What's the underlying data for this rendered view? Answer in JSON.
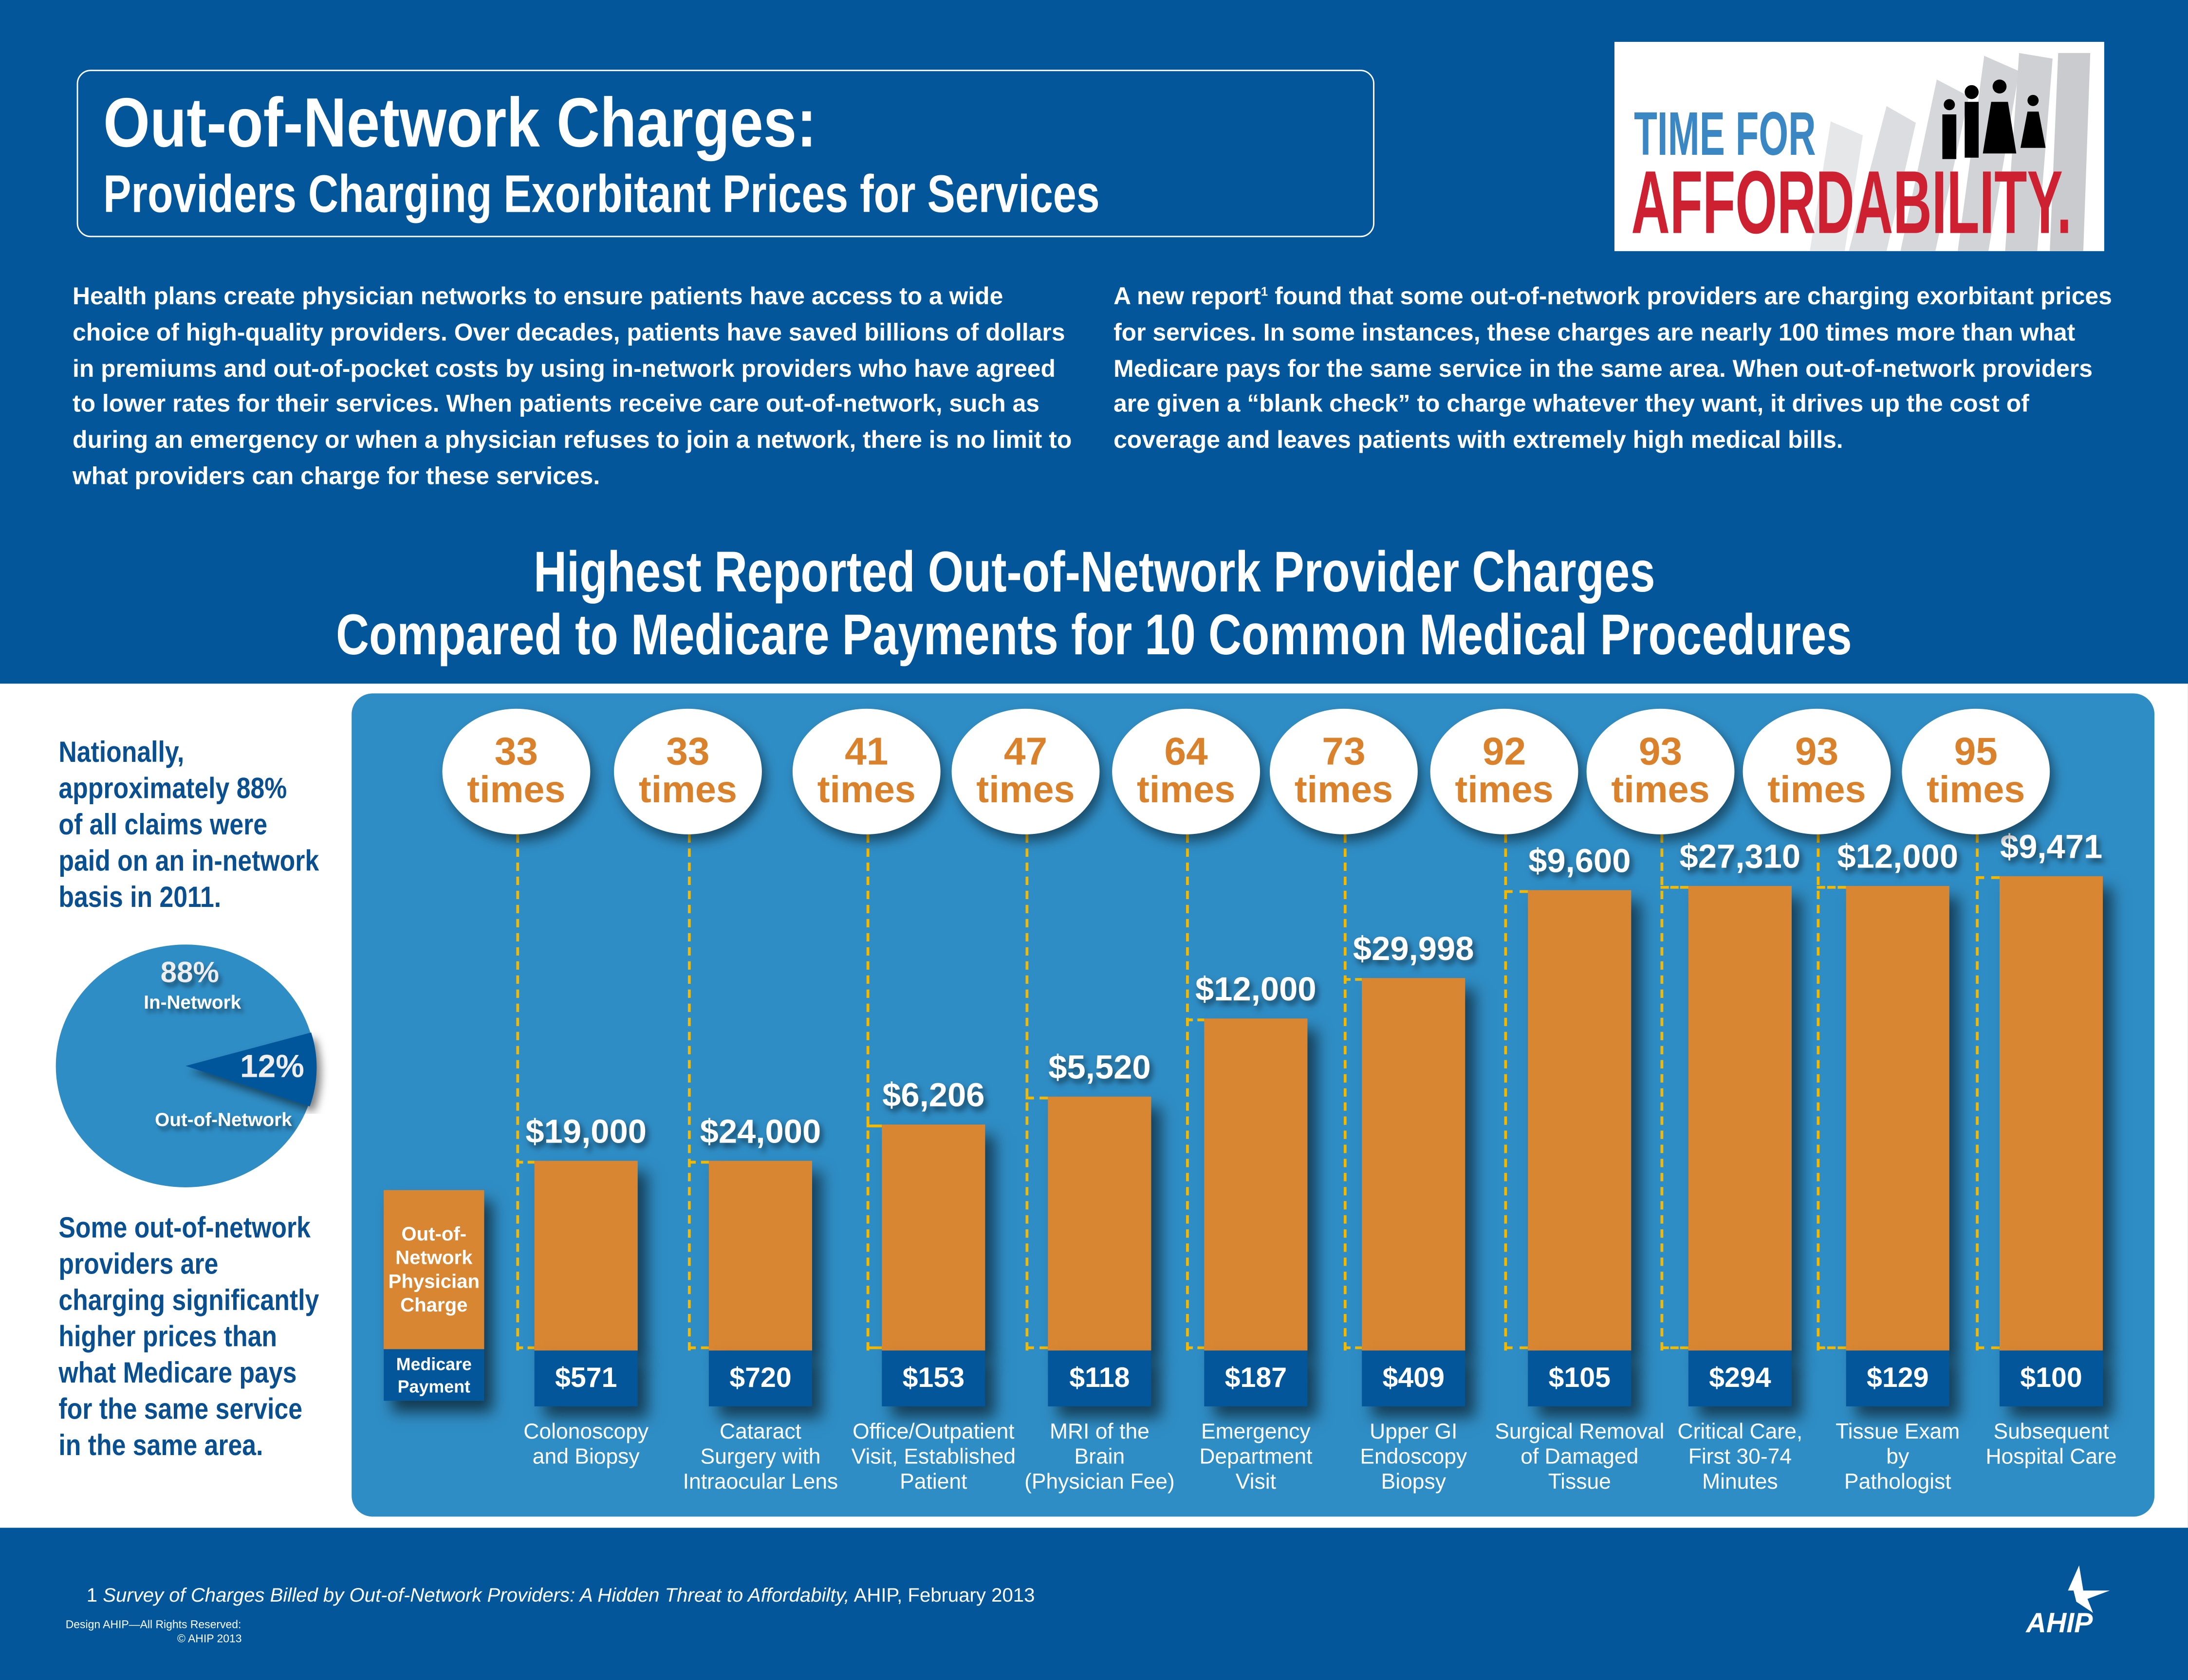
{
  "header": {
    "title_line1": "Out-of-Network Charges:",
    "title_line2": "Providers Charging Exorbitant Prices for Services"
  },
  "logo": {
    "line1": "TIME FOR",
    "line2": "AFFORDABILITY."
  },
  "intro": {
    "left": "Health plans create physician networks to ensure patients have access to a wide choice of high-quality providers. Over decades, patients have saved billions of dollars in premiums and out-of-pocket costs by using in-network providers who have agreed to lower rates for their services. When patients receive care out-of-network, such as during an emergency or when a physician refuses to join a network, there is no limit to what providers can charge for these services.",
    "right_before": "A new report",
    "right_sup": "1",
    "right_after": " found that some out-of-network providers are charging exorbitant prices for services. In some instances, these charges are nearly 100 times more than what Medicare pays for the same service in the same area. When out-of-network providers are given a “blank check” to charge whatever they want, it drives up the cost of coverage and leaves patients with extremely high medical bills."
  },
  "sidebar": {
    "top_text": [
      "Nationally,",
      "approximately 88%",
      "of all claims were",
      "paid on an in-network",
      "basis in 2011."
    ],
    "pie": {
      "in_pct": "88%",
      "in_label": "In-Network",
      "out_pct": "12%",
      "out_label": "Out-of-Network",
      "in_value": 88,
      "out_value": 12,
      "in_color": "#2f8dc5",
      "out_color": "#03569a"
    },
    "bottom_text": [
      "Some out-of-network",
      "providers are",
      "charging significantly",
      "higher prices than",
      "what Medicare pays",
      "for the same service",
      "in the same area."
    ]
  },
  "legend": {
    "charge": "Out-of-Network Physician Charge",
    "medicare": "Medicare Payment"
  },
  "chart_data": {
    "type": "bar",
    "title": "Highest Reported Out-of-Network Provider Charges",
    "subtitle": "Compared to Medicare Payments for 10 Common Medical Procedures",
    "times_label": "times",
    "colors": {
      "charge": "#d98633",
      "medicare": "#03569a",
      "multiple": "#d9822b",
      "connector": "#f5b800"
    },
    "categories": [
      "Colonoscopy\nand Biopsy",
      "Cataract\nSurgery with\nIntraocular Lens",
      "Office/Outpatient\nVisit, Established\nPatient",
      "MRI of the\nBrain\n(Physician Fee)",
      "Emergency\nDepartment\nVisit",
      "Upper GI\nEndoscopy\nBiopsy",
      "Surgical Removal\nof Damaged\nTissue",
      "Critical Care,\nFirst 30-74\nMinutes",
      "Tissue Exam\nby\nPathologist",
      "Subsequent\nHospital Care"
    ],
    "series": [
      {
        "name": "Out-of-Network Physician Charge",
        "labels": [
          "$19,000",
          "$24,000",
          "$6,206",
          "$5,520",
          "$12,000",
          "$29,998",
          "$9,600",
          "$27,310",
          "$12,000",
          "$9,471"
        ],
        "values": [
          19000,
          24000,
          6206,
          5520,
          12000,
          29998,
          9600,
          27310,
          12000,
          9471
        ]
      },
      {
        "name": "Medicare Payment",
        "labels": [
          "$571",
          "$720",
          "$153",
          "$118",
          "$187",
          "$409",
          "$105",
          "$294",
          "$129",
          "$100"
        ],
        "values": [
          571,
          720,
          153,
          118,
          187,
          409,
          105,
          294,
          129,
          100
        ]
      }
    ],
    "multiples": [
      33,
      33,
      41,
      47,
      64,
      73,
      92,
      93,
      93,
      95
    ]
  },
  "footer": {
    "note_num": "1 ",
    "note_title": "Survey of Charges Billed by Out-of-Network Providers: A Hidden Threat to Affordabilty,",
    "note_rest": " AHIP, February 2013",
    "design": "Design AHIP—All Rights Reserved:",
    "copyright": "© AHIP 2013",
    "brand": "AHIP"
  }
}
